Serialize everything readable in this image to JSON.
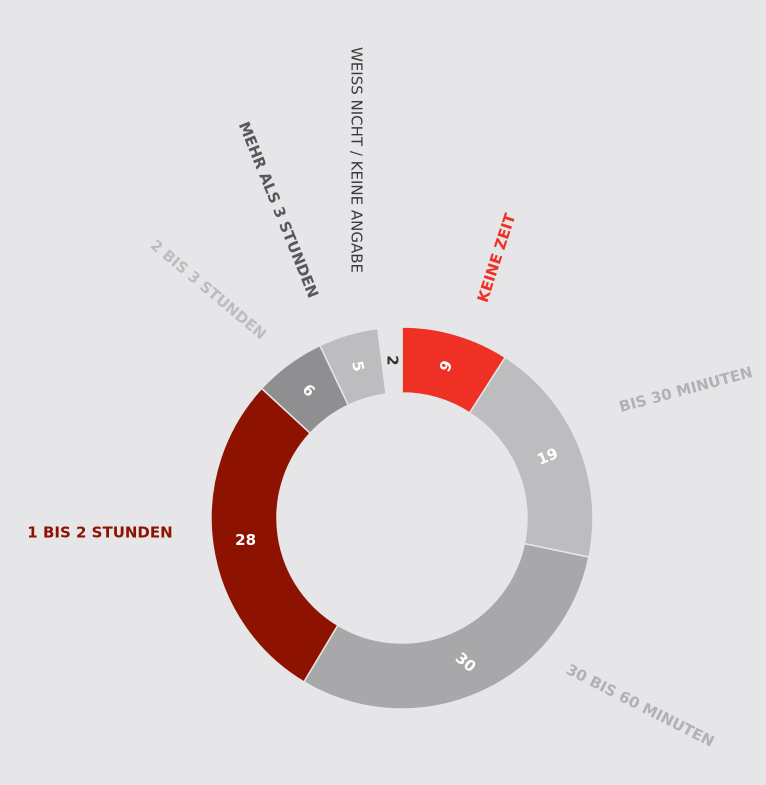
{
  "chart_data": {
    "type": "donut",
    "categories": [
      "KEINE ZEIT",
      "BIS 30 MINUTEN",
      "30 BIS 60 MINUTEN",
      "1 BIS 2 STUNDEN",
      "2 BIS 3 STUNDEN",
      "MEHR ALS 3 STUNDEN",
      "WEISS NICHT / KEINE ANGABE"
    ],
    "values": [
      9,
      19,
      30,
      28,
      6,
      5,
      2
    ],
    "colors": [
      "#ee3124",
      "#bdbdbf",
      "#a8a8aa",
      "#8d1200",
      "#8f8f91",
      "#bdbdbf",
      "#e6e6e8"
    ],
    "label_colors": [
      "#ee3124",
      "#b2b2b4",
      "#b2b2b4",
      "#8d1200",
      "#bdbdbf",
      "#58585a",
      "#3a3a3c"
    ]
  }
}
